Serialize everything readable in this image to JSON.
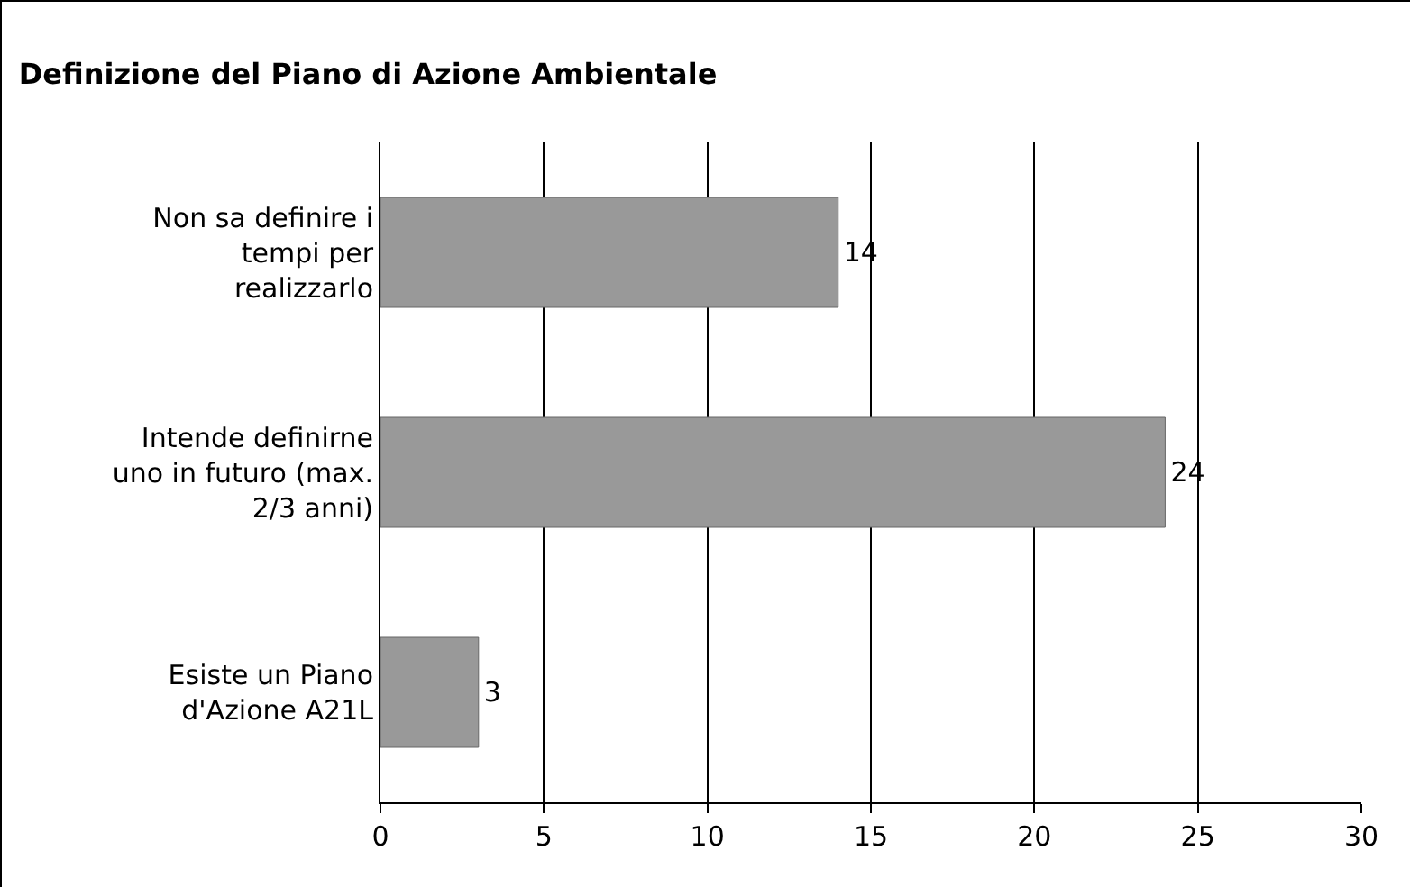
{
  "chart_data": {
    "type": "bar",
    "title": "Definizione del Piano di Azione Ambientale",
    "orientation": "horizontal",
    "categories": [
      "Non sa definire i tempi per realizzarlo",
      "Intende definirne uno in futuro (max. 2/3 anni)",
      "Esiste un Piano d'Azione A21L"
    ],
    "values": [
      14,
      24,
      3
    ],
    "color": "#999999",
    "xlim": [
      0,
      30
    ],
    "xticks": [
      0,
      5,
      10,
      15,
      20,
      25,
      30
    ],
    "grid": "x",
    "data_labels": true
  }
}
